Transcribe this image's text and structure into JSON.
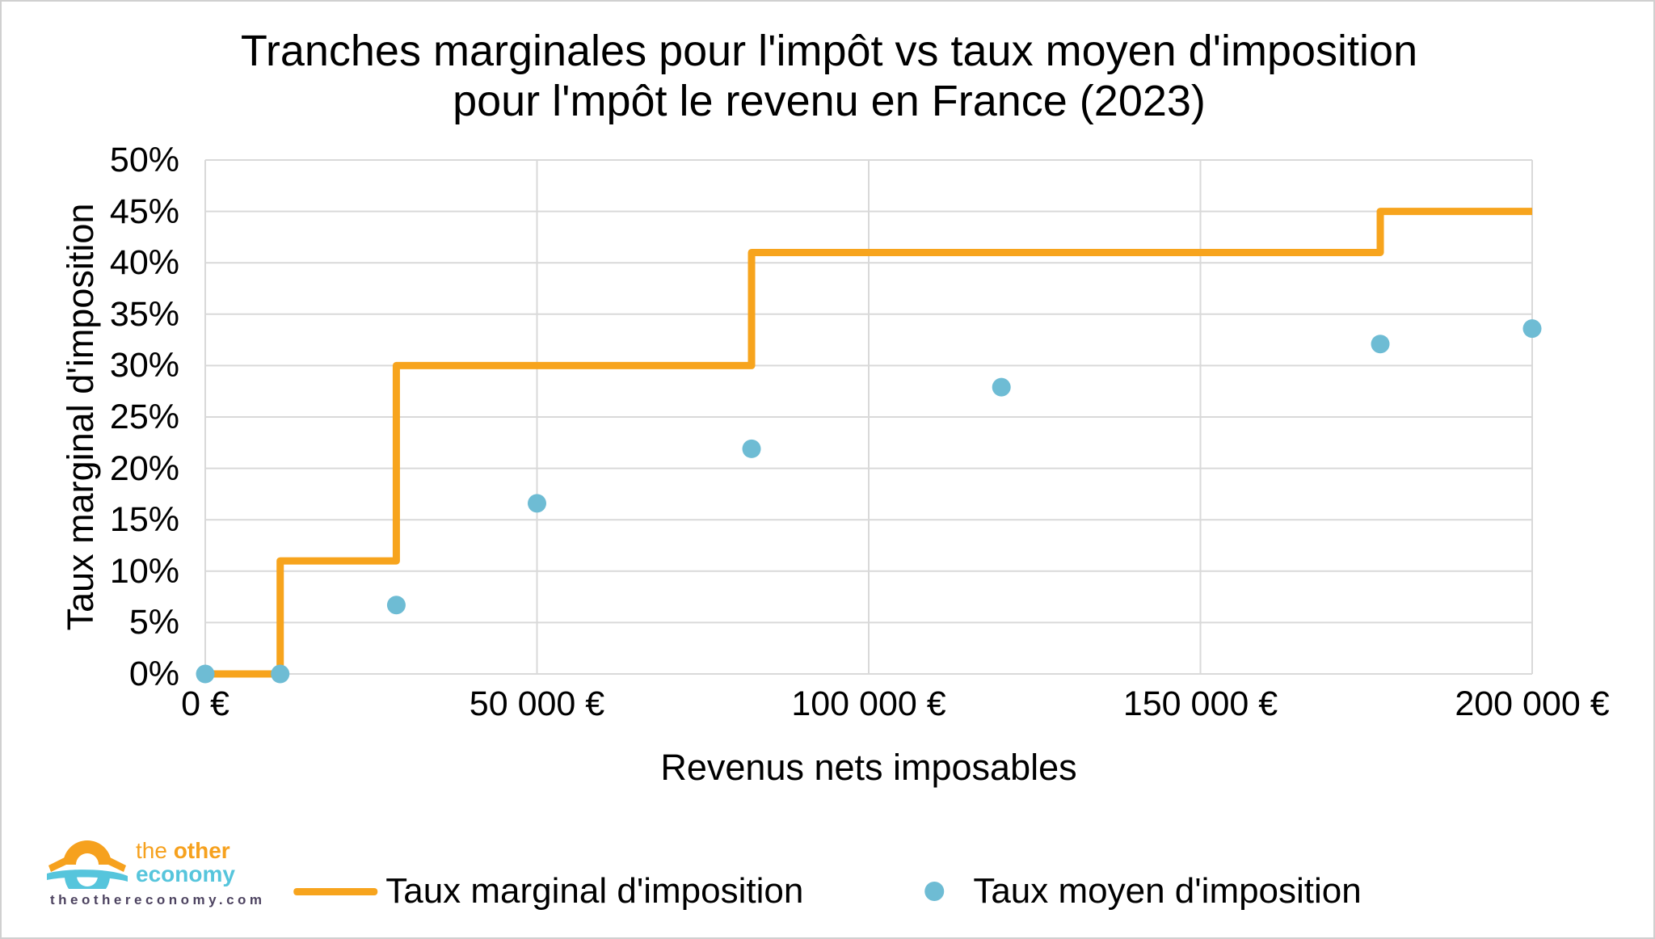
{
  "title": {
    "line1": "Tranches marginales pour l'impôt vs taux moyen d'imposition",
    "line2": "pour l'mpôt le revenu en France (2023)"
  },
  "chart_data": {
    "type": "line",
    "title": "Tranches marginales pour l'impôt vs taux moyen d'imposition pour l'mpôt le revenu en France (2023)",
    "xlabel": "Revenus nets imposables",
    "ylabel": "Taux marginal d'imposition",
    "xlim": [
      0,
      200000
    ],
    "ylim": [
      0,
      50
    ],
    "grid": true,
    "legend_position": "bottom",
    "x_ticks": [
      {
        "value": 0,
        "label": "0 €"
      },
      {
        "value": 50000,
        "label": "50 000 €"
      },
      {
        "value": 100000,
        "label": "100 000 €"
      },
      {
        "value": 150000,
        "label": "150 000 €"
      },
      {
        "value": 200000,
        "label": "200 000 €"
      }
    ],
    "y_ticks": [
      {
        "value": 0,
        "label": "0%"
      },
      {
        "value": 5,
        "label": "5%"
      },
      {
        "value": 10,
        "label": "10%"
      },
      {
        "value": 15,
        "label": "15%"
      },
      {
        "value": 20,
        "label": "20%"
      },
      {
        "value": 25,
        "label": "25%"
      },
      {
        "value": 30,
        "label": "30%"
      },
      {
        "value": 35,
        "label": "35%"
      },
      {
        "value": 40,
        "label": "40%"
      },
      {
        "value": 45,
        "label": "45%"
      },
      {
        "value": 50,
        "label": "50%"
      }
    ],
    "series": [
      {
        "name": "Taux marginal d'imposition",
        "type": "step-line",
        "color": "#F7A41D",
        "stroke_width": 9,
        "points": [
          [
            0,
            0
          ],
          [
            11294,
            0
          ],
          [
            11294,
            11
          ],
          [
            28797,
            11
          ],
          [
            28797,
            30
          ],
          [
            82341,
            30
          ],
          [
            82341,
            41
          ],
          [
            177106,
            41
          ],
          [
            177106,
            45
          ],
          [
            200000,
            45
          ]
        ]
      },
      {
        "name": "Taux moyen d'imposition",
        "type": "scatter",
        "color": "#6EBCD4",
        "marker_radius": 11.5,
        "points": [
          [
            0,
            0
          ],
          [
            11294,
            0
          ],
          [
            28797,
            6.7
          ],
          [
            50000,
            16.6
          ],
          [
            82341,
            21.9
          ],
          [
            120000,
            27.9
          ],
          [
            177106,
            32.1
          ],
          [
            200000,
            33.6
          ]
        ]
      }
    ]
  },
  "legend": {
    "items": [
      {
        "label": "Taux marginal d'imposition",
        "marker": "line",
        "color": "#F7A41D"
      },
      {
        "label": "Taux moyen d'imposition",
        "marker": "dot",
        "color": "#6EBCD4"
      }
    ]
  },
  "branding": {
    "name_the": "the ",
    "name_other": "other",
    "name_economy": "economy",
    "url": "theothereconomy.com",
    "orange": "#F6A11E",
    "blue": "#56C5DC",
    "url_color": "#4D4360"
  },
  "colors": {
    "grid": "#D9D9D9",
    "background": "#FFFFFF",
    "border": "#D0D0D0",
    "text": "#000000"
  }
}
